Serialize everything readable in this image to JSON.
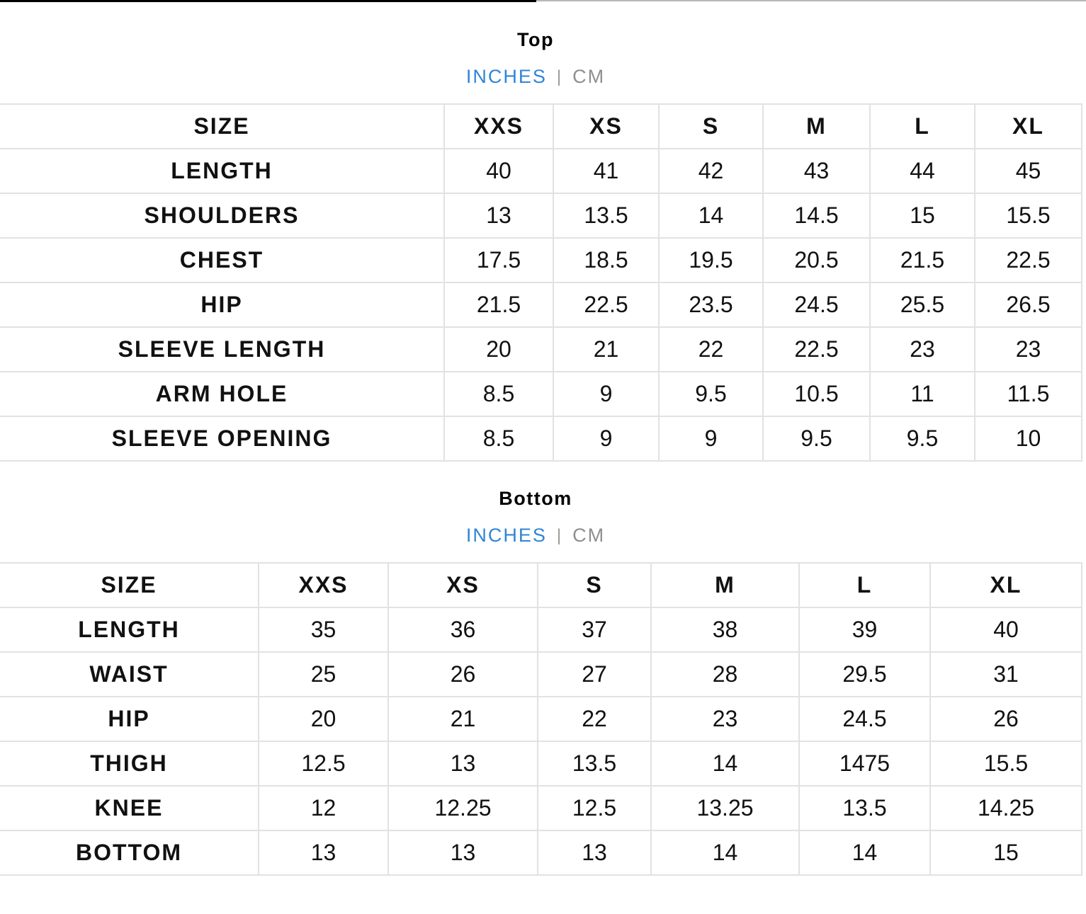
{
  "top": {
    "title": "Top",
    "units": {
      "inches": "INCHES",
      "separator": "|",
      "cm": "CM"
    },
    "header": [
      "SIZE",
      "XXS",
      "XS",
      "S",
      "M",
      "L",
      "XL"
    ],
    "rows": [
      [
        "LENGTH",
        "40",
        "41",
        "42",
        "43",
        "44",
        "45"
      ],
      [
        "SHOULDERS",
        "13",
        "13.5",
        "14",
        "14.5",
        "15",
        "15.5"
      ],
      [
        "CHEST",
        "17.5",
        "18.5",
        "19.5",
        "20.5",
        "21.5",
        "22.5"
      ],
      [
        "HIP",
        "21.5",
        "22.5",
        "23.5",
        "24.5",
        "25.5",
        "26.5"
      ],
      [
        "SLEEVE LENGTH",
        "20",
        "21",
        "22",
        "22.5",
        "23",
        "23"
      ],
      [
        "ARM HOLE",
        "8.5",
        "9",
        "9.5",
        "10.5",
        "11",
        "11.5"
      ],
      [
        "SLEEVE OPENING",
        "8.5",
        "9",
        "9",
        "9.5",
        "9.5",
        "10"
      ]
    ]
  },
  "bottom": {
    "title": "Bottom",
    "units": {
      "inches": "INCHES",
      "separator": "|",
      "cm": "CM"
    },
    "header": [
      "SIZE",
      "XXS",
      "XS",
      "S",
      "M",
      "L",
      "XL"
    ],
    "rows": [
      [
        "LENGTH",
        "35",
        "36",
        "37",
        "38",
        "39",
        "40"
      ],
      [
        "WAIST",
        "25",
        "26",
        "27",
        "28",
        "29.5",
        "31"
      ],
      [
        "HIP",
        "20",
        "21",
        "22",
        "23",
        "24.5",
        "26"
      ],
      [
        "THIGH",
        "12.5",
        "13",
        "13.5",
        "14",
        "1475",
        "15.5"
      ],
      [
        "KNEE",
        "12",
        "12.25",
        "12.5",
        "13.25",
        "13.5",
        "14.25"
      ],
      [
        "BOTTOM",
        "13",
        "13",
        "13",
        "14",
        "14",
        "15"
      ]
    ]
  },
  "colors": {
    "active_unit": "#2f86d6",
    "inactive_unit": "#8e8e8e",
    "grid": "#e2e2e2"
  }
}
